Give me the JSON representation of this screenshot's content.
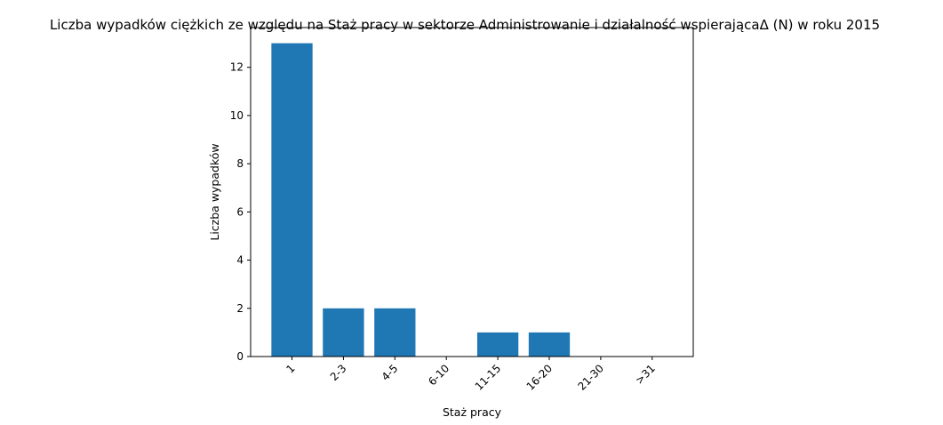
{
  "chart_data": {
    "type": "bar",
    "title": "Liczba wypadków ciężkich ze względu na Staż pracy w sektorze Administrowanie i działalność wspierającaΔ (N) w roku 2015",
    "xlabel": "Staż pracy",
    "ylabel": "Liczba wypadków",
    "categories": [
      "1",
      "2-3",
      "4-5",
      "6-10",
      "11-15",
      "16-20",
      "21-30",
      ">31"
    ],
    "values": [
      13,
      2,
      2,
      0,
      1,
      1,
      0,
      0
    ],
    "ylim": [
      0,
      13.65
    ],
    "yticks": [
      0,
      2,
      4,
      6,
      8,
      10,
      12
    ],
    "bar_color": "#1f77b4",
    "grid": false,
    "legend": "none"
  }
}
